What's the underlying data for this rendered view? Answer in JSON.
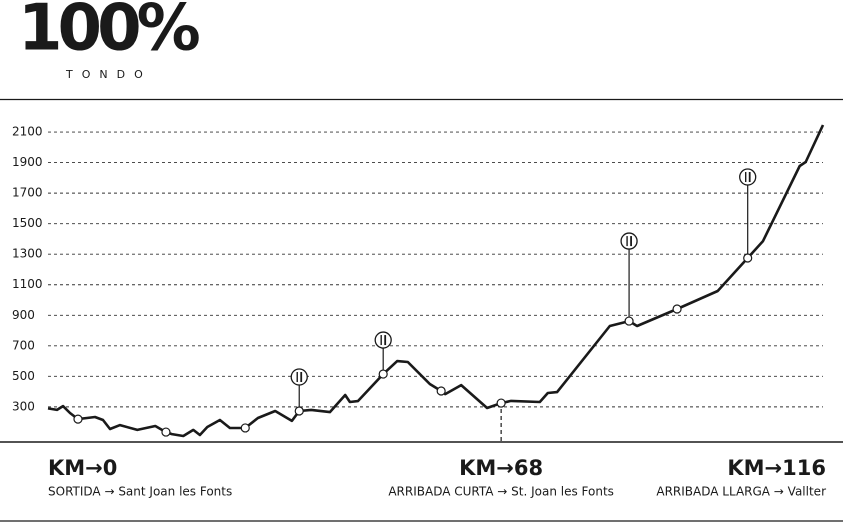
{
  "brand": "100%",
  "brand_subtitle": "TONDO",
  "chart_data": {
    "type": "line",
    "x": [
      0,
      1.35,
      2.25,
      3.3,
      4.5,
      5.85,
      7.05,
      8.25,
      9.3,
      10.8,
      13.4,
      16.1,
      17.7,
      18.6,
      20.3,
      21.8,
      22.8,
      23.9,
      25.8,
      27.3,
      29.6,
      31.5,
      34.1,
      36.6,
      37.7,
      39.5,
      42.3,
      44.6,
      45.3,
      46.5,
      50.3,
      52.4,
      54.0,
      57.3,
      59.0,
      59.6,
      62.0,
      65.9,
      68.0,
      69.5,
      73.8,
      75.0,
      76.4,
      84.3,
      87.2,
      88.4,
      94.4,
      100.5,
      105.0,
      107.3,
      112.8,
      113.7,
      116.3
    ],
    "series": [
      {
        "color": "#1a1a1a",
        "values": [
          290,
          280,
          305,
          260,
          220,
          227,
          234,
          214,
          155,
          181,
          149,
          175,
          135,
          122,
          109,
          149,
          116,
          168,
          214,
          162,
          162,
          227,
          273,
          208,
          273,
          280,
          266,
          378,
          332,
          338,
          515,
          600,
          594,
          450,
          404,
          384,
          443,
          293,
          325,
          339,
          332,
          391,
          397,
          830,
          862,
          830,
          941,
          1059,
          1275,
          1386,
          1878,
          1904,
          2146
        ]
      }
    ],
    "waypoints": [
      {
        "x": 4.5,
        "value": 220,
        "food": false
      },
      {
        "x": 17.7,
        "value": 135,
        "food": false
      },
      {
        "x": 29.6,
        "value": 162,
        "food": false
      },
      {
        "x": 37.7,
        "value": 273,
        "food": true
      },
      {
        "x": 50.3,
        "value": 515,
        "food": true
      },
      {
        "x": 59.0,
        "value": 404,
        "food": false
      },
      {
        "x": 68.0,
        "value": 325,
        "food": false
      },
      {
        "x": 87.2,
        "value": 862,
        "food": true
      },
      {
        "x": 94.4,
        "value": 941,
        "food": false
      },
      {
        "x": 105.0,
        "value": 1275,
        "food": true
      }
    ],
    "xlim": [
      0,
      116
    ],
    "ylim": [
      70,
      2310
    ],
    "yticks": [
      300,
      500,
      700,
      900,
      1100,
      1300,
      1500,
      1700,
      1900,
      2100
    ],
    "grid": true,
    "xticks": [
      {
        "value": 0,
        "label": "KM→0"
      },
      {
        "value": 68,
        "label": "KM→68"
      },
      {
        "value": 116,
        "label": "KM→116"
      }
    ],
    "xtick_captions": [
      "SORTIDA → Sant Joan les Fonts",
      "ARRIBADA CURTA → St. Joan les Fonts",
      "ARRIBADA LLARGA → Vallter"
    ]
  }
}
